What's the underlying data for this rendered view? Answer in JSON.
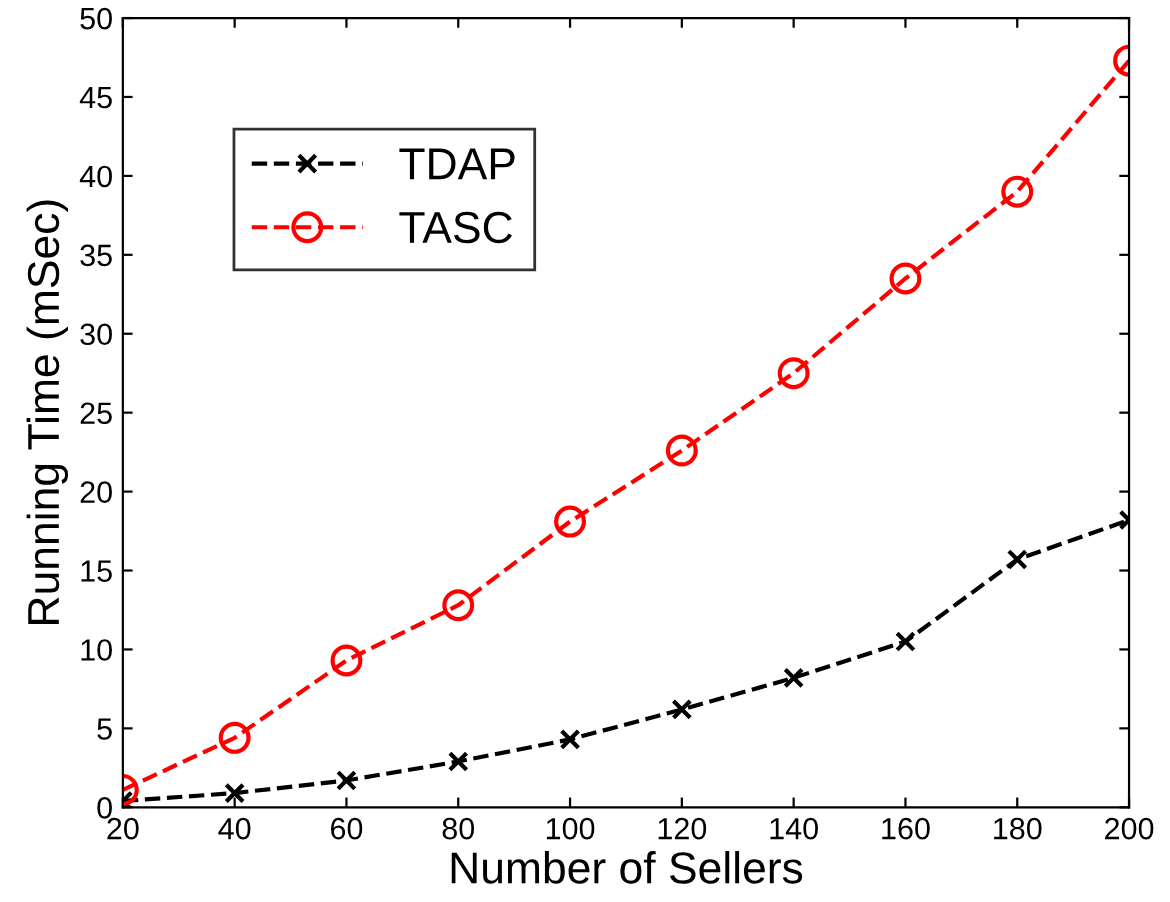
{
  "chart_data": {
    "type": "line",
    "xlabel": "Number of Sellers",
    "ylabel": "Running Time (mSec)",
    "x": [
      20,
      40,
      60,
      80,
      100,
      120,
      140,
      160,
      180,
      200
    ],
    "series": [
      {
        "name": "TDAP",
        "color": "#000000",
        "marker": "cross",
        "line_style": "dashed",
        "values": [
          0.4,
          0.9,
          1.7,
          2.9,
          4.3,
          6.2,
          8.2,
          10.5,
          15.7,
          18.2
        ]
      },
      {
        "name": "TASC",
        "color": "#ff0000",
        "marker": "circle",
        "line_style": "dashed",
        "values": [
          1.1,
          4.4,
          9.3,
          12.8,
          18.1,
          22.6,
          27.5,
          33.5,
          39.0,
          47.3
        ]
      }
    ],
    "xlim": [
      20,
      200
    ],
    "xticks": [
      20,
      40,
      60,
      80,
      100,
      120,
      140,
      160,
      180,
      200
    ],
    "ylim": [
      0,
      50
    ],
    "yticks": [
      0,
      5,
      10,
      15,
      20,
      25,
      30,
      35,
      40,
      45,
      50
    ],
    "grid": false,
    "legend": "top left"
  }
}
